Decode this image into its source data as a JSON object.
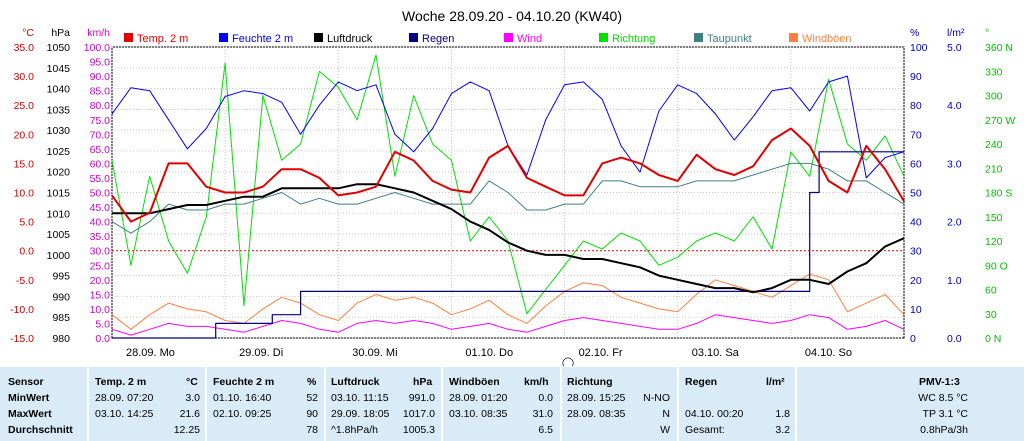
{
  "chart_data": {
    "type": "line",
    "title": "Woche 28.09.20 - 04.10.20 (KW40)",
    "x_day_labels": [
      "28.09.  Mo",
      "29.09.  Di",
      "30.09.  Mi",
      "01.10.  Do",
      "02.10.  Fr",
      "03.10.  Sa",
      "04.10.  So"
    ],
    "x_range_hours": [
      0,
      168
    ],
    "axes": {
      "temp_c": {
        "unit": "°C",
        "ticks": [
          "35.0",
          "30.0",
          "25.0",
          "20.0",
          "15.0",
          "10.0",
          "5.0",
          "0.0",
          "-5.0",
          "-10.0",
          "-15.0"
        ],
        "range": [
          -15,
          35
        ],
        "color": "#d00000"
      },
      "pressure_hpa": {
        "unit": "hPa",
        "ticks": [
          "1050",
          "1045",
          "1040",
          "1035",
          "1030",
          "1025",
          "1020",
          "1015",
          "1010",
          "1005",
          "1000",
          "995",
          "990",
          "985",
          "980"
        ],
        "range": [
          980,
          1050
        ],
        "color": "#000000"
      },
      "wind_kmh": {
        "unit": "km/h",
        "ticks": [
          "100.0",
          "95.0",
          "90.0",
          "85.0",
          "80.0",
          "75.0",
          "70.0",
          "65.0",
          "60.0",
          "55.0",
          "50.0",
          "45.0",
          "40.0",
          "35.0",
          "30.0",
          "25.0",
          "20.0",
          "15.0",
          "10.0",
          "5.0",
          "0.0"
        ],
        "range": [
          0,
          100
        ],
        "color": "#d000d0"
      },
      "humidity_pct": {
        "unit": "%",
        "ticks": [
          "100",
          "90",
          "80",
          "70",
          "60",
          "50",
          "40",
          "30",
          "20",
          "10",
          "0"
        ],
        "range": [
          0,
          100
        ],
        "color": "#0000c0"
      },
      "rain_lm2": {
        "unit": "l/m²",
        "ticks": [
          "5.0",
          "4.0",
          "3.0",
          "2.0",
          "1.0",
          "0.0"
        ],
        "range": [
          0,
          5
        ],
        "color": "#0000c0"
      },
      "direction_deg": {
        "unit": "°",
        "ticks": [
          "360 N",
          "330",
          "300",
          "270 W",
          "240",
          "210",
          "180 S",
          "150",
          "120",
          "90 O",
          "60",
          "30",
          "0 N"
        ],
        "range": [
          0,
          360
        ],
        "color": "#00c000"
      }
    },
    "legend": [
      {
        "name": "Temp. 2 m",
        "color": "#e00000"
      },
      {
        "name": "Feuchte 2 m",
        "color": "#0000ff"
      },
      {
        "name": "Luftdruck",
        "color": "#000000"
      },
      {
        "name": "Regen",
        "color": "#000080"
      },
      {
        "name": "Wind",
        "color": "#ff00ff"
      },
      {
        "name": "Richtung",
        "color": "#00e000"
      },
      {
        "name": "Taupunkt",
        "color": "#408080"
      },
      {
        "name": "Windböen",
        "color": "#ff8040"
      }
    ],
    "series": [
      {
        "name": "Temp. 2 m",
        "axis": "temp_c",
        "color": "#e00000",
        "x": [
          0,
          4,
          8,
          12,
          16,
          20,
          24,
          28,
          32,
          36,
          40,
          44,
          48,
          52,
          56,
          60,
          64,
          68,
          72,
          76,
          80,
          84,
          88,
          92,
          96,
          100,
          104,
          108,
          112,
          116,
          120,
          124,
          128,
          132,
          136,
          140,
          144,
          148,
          152,
          156,
          160,
          164,
          168
        ],
        "y": [
          9.5,
          5.0,
          6.5,
          15.0,
          15.0,
          11.0,
          10.0,
          10.0,
          11.0,
          14.0,
          14.0,
          12.5,
          9.5,
          10.0,
          11.0,
          17.0,
          15.5,
          12.0,
          10.5,
          10.0,
          16.0,
          18.0,
          12.5,
          11.0,
          9.5,
          9.5,
          15.0,
          16.0,
          15.0,
          13.0,
          12.0,
          16.5,
          14.0,
          13.0,
          14.5,
          19.0,
          21.0,
          18.0,
          12.0,
          10.0,
          18.0,
          14.0,
          8.5
        ]
      },
      {
        "name": "Feuchte 2 m",
        "axis": "humidity_pct",
        "color": "#0000ff",
        "x": [
          0,
          4,
          8,
          12,
          16,
          20,
          24,
          28,
          32,
          36,
          40,
          44,
          48,
          52,
          56,
          60,
          64,
          68,
          72,
          76,
          80,
          84,
          88,
          92,
          96,
          100,
          104,
          108,
          112,
          116,
          120,
          124,
          128,
          132,
          136,
          140,
          144,
          148,
          152,
          156,
          160,
          164,
          168
        ],
        "y": [
          77,
          86,
          85,
          75,
          65,
          72,
          83,
          85,
          84,
          81,
          70,
          80,
          88,
          85,
          87,
          70,
          64,
          72,
          84,
          88,
          85,
          66,
          56,
          75,
          87,
          88,
          82,
          66,
          57,
          78,
          87,
          84,
          77,
          68,
          76,
          85,
          86,
          78,
          88,
          90,
          55,
          62,
          64
        ]
      },
      {
        "name": "Luftdruck",
        "axis": "pressure_hpa",
        "color": "#000000",
        "x": [
          0,
          4,
          8,
          12,
          16,
          20,
          24,
          28,
          32,
          36,
          40,
          44,
          48,
          52,
          56,
          60,
          64,
          68,
          72,
          76,
          80,
          84,
          88,
          92,
          96,
          100,
          104,
          108,
          112,
          116,
          120,
          124,
          128,
          132,
          136,
          140,
          144,
          148,
          152,
          156,
          160,
          164,
          168
        ],
        "y": [
          1010,
          1010,
          1010,
          1011,
          1012,
          1012,
          1013,
          1014,
          1014,
          1016,
          1016,
          1016,
          1016,
          1017,
          1017,
          1016,
          1015,
          1013,
          1011,
          1008,
          1006,
          1003,
          1001,
          1000,
          1000,
          999,
          999,
          998,
          997,
          995,
          994,
          993,
          992,
          992,
          991,
          992,
          994,
          994,
          993,
          996,
          998,
          1002,
          1004
        ]
      },
      {
        "name": "Wind",
        "axis": "wind_kmh",
        "color": "#ff00ff",
        "x": [
          0,
          4,
          8,
          12,
          16,
          20,
          24,
          28,
          32,
          36,
          40,
          44,
          48,
          52,
          56,
          60,
          64,
          68,
          72,
          76,
          80,
          84,
          88,
          92,
          96,
          100,
          104,
          108,
          112,
          116,
          120,
          124,
          128,
          132,
          136,
          140,
          144,
          148,
          152,
          156,
          160,
          164,
          168
        ],
        "y": [
          3,
          1,
          3,
          5,
          4,
          4,
          3,
          2,
          4,
          6,
          5,
          3,
          2,
          5,
          6,
          5,
          6,
          5,
          3,
          4,
          5,
          3,
          2,
          4,
          6,
          7,
          6,
          5,
          4,
          3,
          3,
          5,
          8,
          7,
          6,
          5,
          6,
          8,
          7,
          3,
          4,
          6,
          3
        ]
      },
      {
        "name": "Richtung",
        "axis": "direction_deg",
        "color": "#00e000",
        "x": [
          0,
          4,
          8,
          12,
          16,
          20,
          24,
          28,
          32,
          36,
          40,
          44,
          48,
          52,
          56,
          60,
          64,
          68,
          72,
          76,
          80,
          84,
          88,
          92,
          96,
          100,
          104,
          108,
          112,
          116,
          120,
          124,
          128,
          132,
          136,
          140,
          144,
          148,
          152,
          156,
          160,
          164,
          168
        ],
        "y": [
          220,
          90,
          200,
          120,
          80,
          150,
          340,
          40,
          300,
          220,
          240,
          330,
          310,
          270,
          350,
          200,
          300,
          240,
          220,
          120,
          150,
          120,
          30,
          60,
          90,
          120,
          110,
          130,
          120,
          90,
          100,
          120,
          130,
          120,
          150,
          110,
          230,
          200,
          320,
          240,
          220,
          250,
          200
        ]
      },
      {
        "name": "Taupunkt",
        "axis": "temp_c",
        "color": "#408080",
        "x": [
          0,
          4,
          8,
          12,
          16,
          20,
          24,
          28,
          32,
          36,
          40,
          44,
          48,
          52,
          56,
          60,
          64,
          68,
          72,
          76,
          80,
          84,
          88,
          92,
          96,
          100,
          104,
          108,
          112,
          116,
          120,
          124,
          128,
          132,
          136,
          140,
          144,
          148,
          152,
          156,
          160,
          164,
          168
        ],
        "y": [
          5,
          3,
          5,
          8,
          7,
          7,
          8,
          8,
          9,
          10,
          8,
          9,
          8,
          8,
          9,
          10,
          9,
          8,
          8,
          8,
          12,
          10,
          7,
          7,
          8,
          8,
          12,
          12,
          11,
          11,
          11,
          12,
          12,
          12,
          13,
          14,
          15,
          15,
          14,
          12,
          12,
          10,
          8
        ]
      },
      {
        "name": "Windböen",
        "axis": "wind_kmh",
        "color": "#ff8040",
        "x": [
          0,
          4,
          8,
          12,
          16,
          20,
          24,
          28,
          32,
          36,
          40,
          44,
          48,
          52,
          56,
          60,
          64,
          68,
          72,
          76,
          80,
          84,
          88,
          92,
          96,
          100,
          104,
          108,
          112,
          116,
          120,
          124,
          128,
          132,
          136,
          140,
          144,
          148,
          152,
          156,
          160,
          164,
          168
        ],
        "y": [
          8,
          3,
          8,
          12,
          10,
          9,
          6,
          5,
          10,
          14,
          12,
          8,
          6,
          12,
          15,
          13,
          14,
          12,
          8,
          10,
          13,
          8,
          5,
          11,
          16,
          19,
          18,
          14,
          12,
          10,
          9,
          15,
          20,
          18,
          16,
          14,
          18,
          22,
          20,
          9,
          12,
          15,
          8
        ]
      },
      {
        "name": "Regen",
        "axis": "rain_lm2",
        "color": "#000080",
        "x": [
          0,
          22,
          22,
          34,
          34,
          40,
          40,
          60,
          60,
          84,
          84,
          94,
          94,
          106,
          106,
          120,
          120,
          148,
          148,
          150,
          150,
          168
        ],
        "y": [
          0,
          0,
          0.25,
          0.25,
          0.4,
          0.4,
          0.8,
          0.8,
          0.8,
          0.8,
          0.8,
          0.8,
          0.8,
          0.8,
          0.8,
          0.8,
          0.8,
          0.8,
          2.5,
          2.5,
          3.2,
          3.2
        ]
      }
    ]
  },
  "stats": {
    "headers": {
      "sensor": "Sensor",
      "temp": "Temp. 2 m",
      "temp_unit": "°C",
      "hum": "Feuchte  2 m",
      "hum_unit": "%",
      "press": "Luftdruck",
      "press_unit": "hPa",
      "gust": "Windböen",
      "gust_unit": "km/h",
      "dir": "Richtung",
      "rain": "Regen",
      "rain_unit": "l/m²",
      "pmv": "PMV-1:3"
    },
    "row_labels": {
      "min": "MinWert",
      "max": "MaxWert",
      "avg": "Durchschnitt"
    },
    "temp": {
      "min_time": "28.09.  07:20",
      "min_val": "3.0",
      "max_time": "03.10.  14:25",
      "max_val": "21.6",
      "avg": "12.25"
    },
    "hum": {
      "min_time": "01.10.  16:40",
      "min_val": "52",
      "max_time": "02.10.  09:25",
      "max_val": "90",
      "avg": "78"
    },
    "press": {
      "min_time": "03.10.  11:15",
      "min_val": "991.0",
      "max_time": "29.09.  18:05",
      "max_val": "1017.0",
      "avg_label": "^1.8hPa/h",
      "avg": "1005.3"
    },
    "gust": {
      "min_time": "28.09.  01:20",
      "min_val": "0.0",
      "max_time": "03.10.  08:35",
      "max_val": "31.0",
      "avg": "6.5"
    },
    "dir": {
      "min_time": "28.09.  15:25",
      "min_val": "N-NO",
      "max_time": "28.09.  08:35",
      "max_val": "N",
      "avg": "W"
    },
    "rain": {
      "max_time": "04.10.  00:20",
      "max_val": "1.8",
      "total_label": "Gesamt:",
      "total": "3.2"
    },
    "pmv": {
      "wc": "WC 8.5 °C",
      "tp": "TP 3.1 °C",
      "trend": "0.8hPa/3h"
    }
  }
}
